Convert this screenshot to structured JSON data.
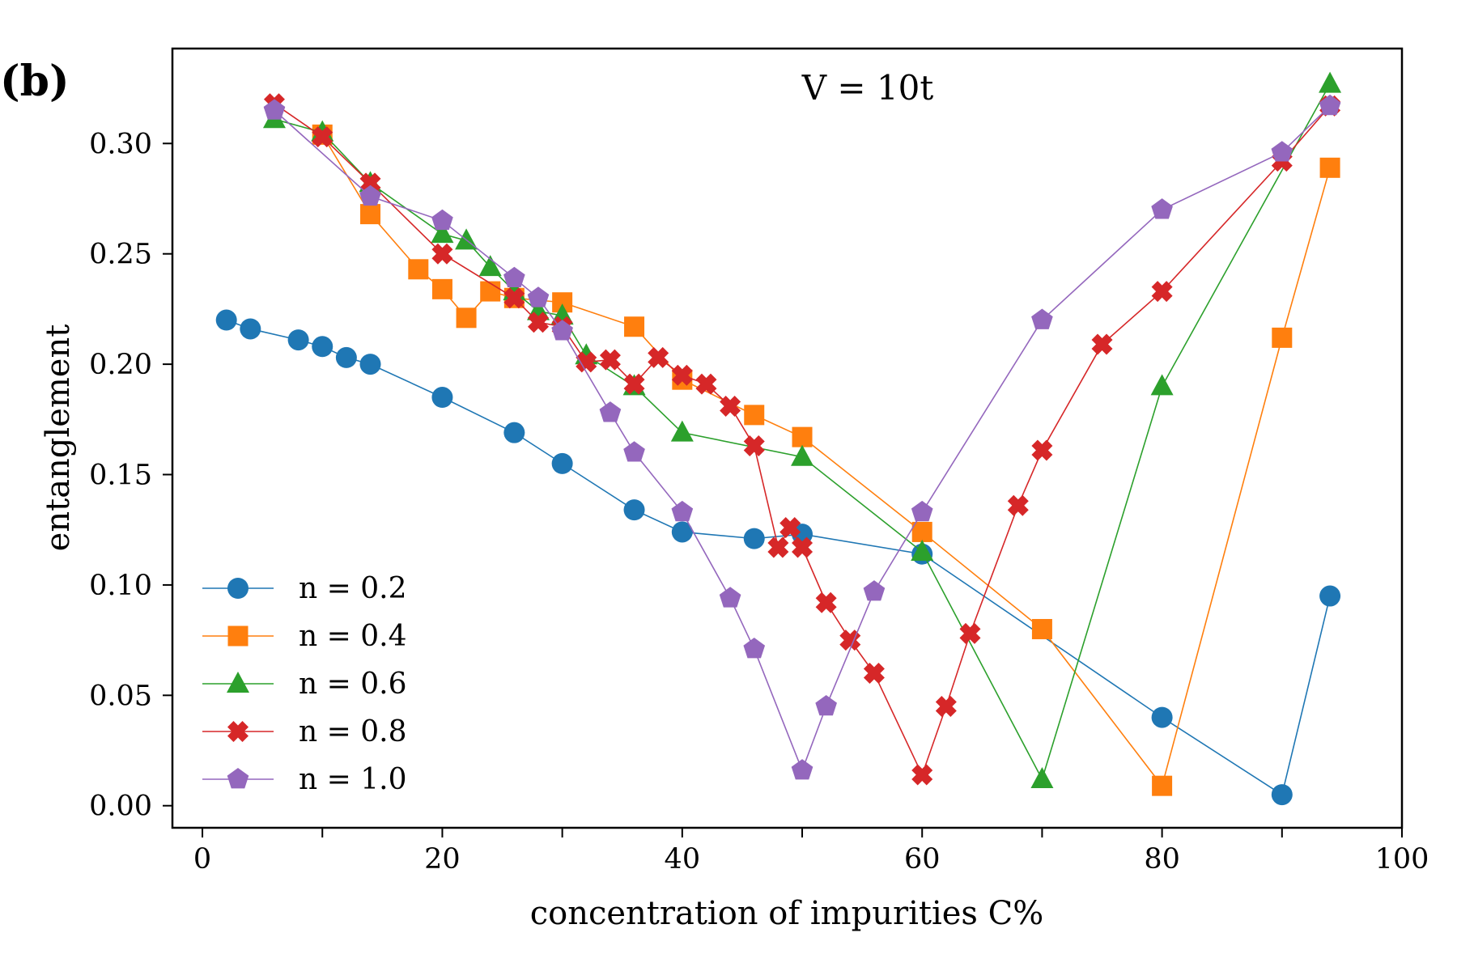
{
  "chart_data": {
    "type": "line",
    "panel_label": "(b)",
    "annotation": "V = 10t",
    "xlabel": "concentration of impurities C%",
    "ylabel": "entanglement",
    "xlim": [
      -2.5,
      100
    ],
    "ylim": [
      -0.01,
      0.343
    ],
    "xticks": [
      0,
      10,
      20,
      30,
      40,
      50,
      60,
      70,
      80,
      90,
      100
    ],
    "xtick_labels": [
      "0",
      "",
      "20",
      "",
      "40",
      "",
      "60",
      "",
      "80",
      "",
      "100"
    ],
    "yticks": [
      0.0,
      0.05,
      0.1,
      0.15,
      0.2,
      0.25,
      0.3
    ],
    "ytick_labels": [
      "0.00",
      "0.05",
      "0.10",
      "0.15",
      "0.20",
      "0.25",
      "0.30"
    ],
    "grid": false,
    "legend_position": "lower-left",
    "series": [
      {
        "name": "n = 0.2",
        "color": "#1f77b4",
        "marker": "circle",
        "x": [
          2,
          4,
          8,
          10,
          12,
          14,
          20,
          26,
          30,
          36,
          40,
          46,
          50,
          60,
          80,
          90,
          94
        ],
        "y": [
          0.22,
          0.216,
          0.211,
          0.208,
          0.203,
          0.2,
          0.185,
          0.169,
          0.155,
          0.134,
          0.124,
          0.121,
          0.123,
          0.114,
          0.04,
          0.005,
          0.095
        ]
      },
      {
        "name": "n = 0.4",
        "color": "#ff7f0e",
        "marker": "square",
        "x": [
          10,
          14,
          18,
          20,
          22,
          24,
          26,
          30,
          36,
          40,
          46,
          50,
          60,
          70,
          80,
          90,
          94
        ],
        "y": [
          0.304,
          0.268,
          0.243,
          0.234,
          0.221,
          0.233,
          0.23,
          0.228,
          0.217,
          0.193,
          0.177,
          0.167,
          0.124,
          0.08,
          0.009,
          0.212,
          0.289
        ]
      },
      {
        "name": "n = 0.6",
        "color": "#2ca02c",
        "marker": "triangle",
        "x": [
          6,
          10,
          14,
          20,
          22,
          24,
          26,
          28,
          30,
          32,
          36,
          40,
          50,
          60,
          70,
          80,
          94
        ],
        "y": [
          0.311,
          0.305,
          0.282,
          0.259,
          0.256,
          0.244,
          0.233,
          0.224,
          0.222,
          0.204,
          0.19,
          0.169,
          0.158,
          0.115,
          0.012,
          0.19,
          0.327
        ]
      },
      {
        "name": "n = 0.8",
        "color": "#d62728",
        "marker": "x",
        "x": [
          6,
          10,
          14,
          20,
          26,
          28,
          30,
          32,
          34,
          36,
          38,
          40,
          42,
          44,
          46,
          48,
          49,
          50,
          52,
          54,
          56,
          60,
          62,
          64,
          68,
          70,
          75,
          80,
          90,
          94
        ],
        "y": [
          0.318,
          0.303,
          0.282,
          0.25,
          0.23,
          0.219,
          0.217,
          0.201,
          0.202,
          0.191,
          0.203,
          0.195,
          0.191,
          0.181,
          0.163,
          0.117,
          0.126,
          0.117,
          0.092,
          0.075,
          0.06,
          0.014,
          0.045,
          0.078,
          0.136,
          0.161,
          0.209,
          0.233,
          0.292,
          0.317
        ]
      },
      {
        "name": "n = 1.0",
        "color": "#9467bd",
        "marker": "pentagon",
        "x": [
          6,
          14,
          20,
          26,
          28,
          30,
          34,
          36,
          40,
          44,
          46,
          50,
          52,
          56,
          60,
          70,
          80,
          90,
          94
        ],
        "y": [
          0.315,
          0.276,
          0.265,
          0.239,
          0.23,
          0.215,
          0.178,
          0.16,
          0.133,
          0.094,
          0.071,
          0.016,
          0.045,
          0.097,
          0.133,
          0.22,
          0.27,
          0.296,
          0.317
        ]
      }
    ]
  }
}
